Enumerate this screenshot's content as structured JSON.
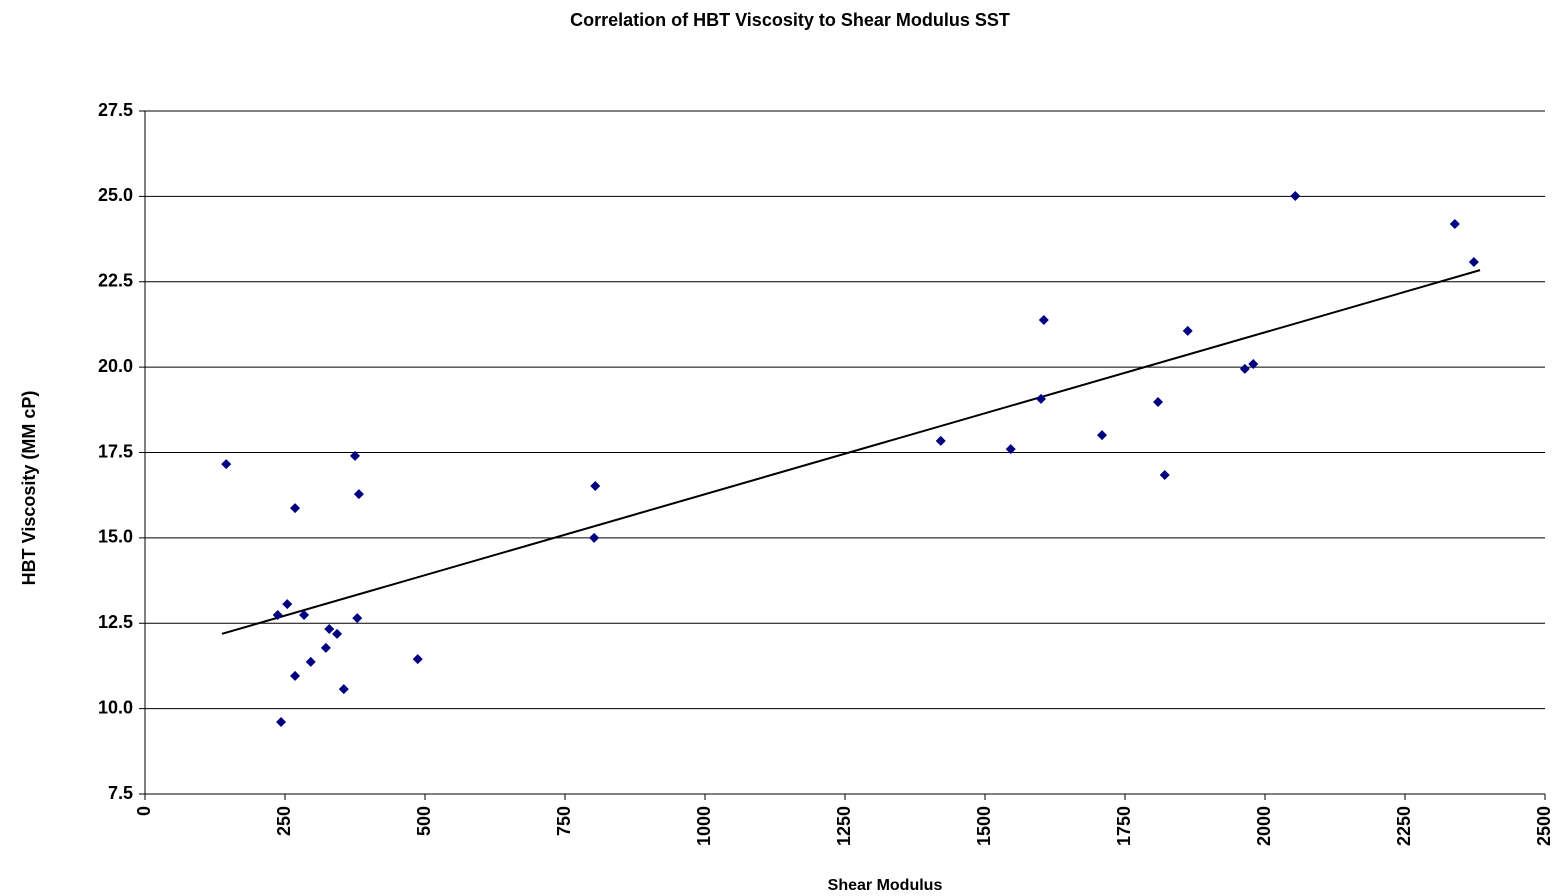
{
  "chart_data": {
    "type": "scatter",
    "title": "Correlation of HBT Viscosity to Shear Modulus SST",
    "x_label": "Shear Modulus",
    "y_label": "HBT Viscosity (MM cP)",
    "series": [
      {
        "color": "#000080",
        "x": [
          145,
          237,
          254,
          243,
          268,
          268,
          284,
          296,
          323,
          329,
          343,
          355,
          375,
          382,
          379,
          487,
          804,
          802,
          1421,
          1546,
          1600,
          1605,
          1709,
          1809,
          1821,
          1862,
          1964,
          1979,
          2054,
          2339,
          2373
        ],
        "values": [
          17.16,
          12.74,
          13.06,
          9.61,
          15.87,
          10.96,
          12.74,
          11.37,
          11.78,
          12.33,
          12.19,
          10.57,
          17.4,
          16.28,
          12.65,
          11.45,
          16.52,
          15.0,
          17.84,
          17.6,
          19.07,
          21.38,
          18.01,
          18.98,
          16.84,
          21.06,
          19.95,
          20.09,
          25.01,
          24.19,
          23.08
        ]
      }
    ],
    "trendline": {
      "color": "#000000",
      "x": [
        137.5,
        2384
      ],
      "values": [
        12.19,
        22.84
      ]
    },
    "xlim": [
      0,
      2500
    ],
    "xticks": [
      0,
      250,
      500,
      750,
      1000,
      1250,
      1500,
      1750,
      2000,
      2250,
      2500
    ],
    "ylim": [
      7.5,
      27.5
    ],
    "yticks": [
      {
        "value": 7.5,
        "label": "7.5"
      },
      {
        "value": 10,
        "label": "10.0"
      },
      {
        "value": 12.5,
        "label": "12.5"
      },
      {
        "value": 15,
        "label": "15.0"
      },
      {
        "value": 17.5,
        "label": "17.5"
      },
      {
        "value": 20,
        "label": "20.0"
      },
      {
        "value": 22.5,
        "label": "22.5"
      },
      {
        "value": 25,
        "label": "25.0"
      },
      {
        "value": 27.5,
        "label": "27.5"
      }
    ],
    "grid": true
  }
}
